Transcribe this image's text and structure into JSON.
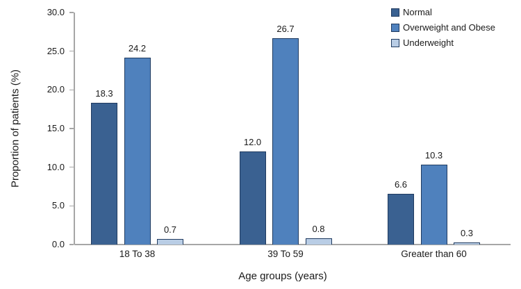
{
  "chart_data": {
    "type": "bar",
    "title": "",
    "xlabel": "Age groups (years)",
    "ylabel": "Proportion of patients (%)",
    "ylim": [
      0,
      30
    ],
    "ytick_step": 5,
    "ytick_labels": [
      "0.0",
      "5.0",
      "10.0",
      "15.0",
      "20.0",
      "25.0",
      "30.0"
    ],
    "grid": false,
    "legend_position": "top-right",
    "categories": [
      "18 To 38",
      "39 To 59",
      "Greater than 60"
    ],
    "series": [
      {
        "name": "Normal",
        "color": "#3a6191",
        "values": [
          18.3,
          12.0,
          6.6
        ]
      },
      {
        "name": "Overweight and Obese",
        "color": "#4f81bd",
        "values": [
          24.2,
          26.7,
          10.3
        ]
      },
      {
        "name": "Underweight",
        "color": "#b9cde5",
        "values": [
          0.7,
          0.8,
          0.3
        ]
      }
    ],
    "value_label_decimals": 1,
    "colors": {
      "bar_border": "#1f3a5f",
      "axis_line": "#a6a6a6",
      "text": "#1a1a1a"
    }
  }
}
